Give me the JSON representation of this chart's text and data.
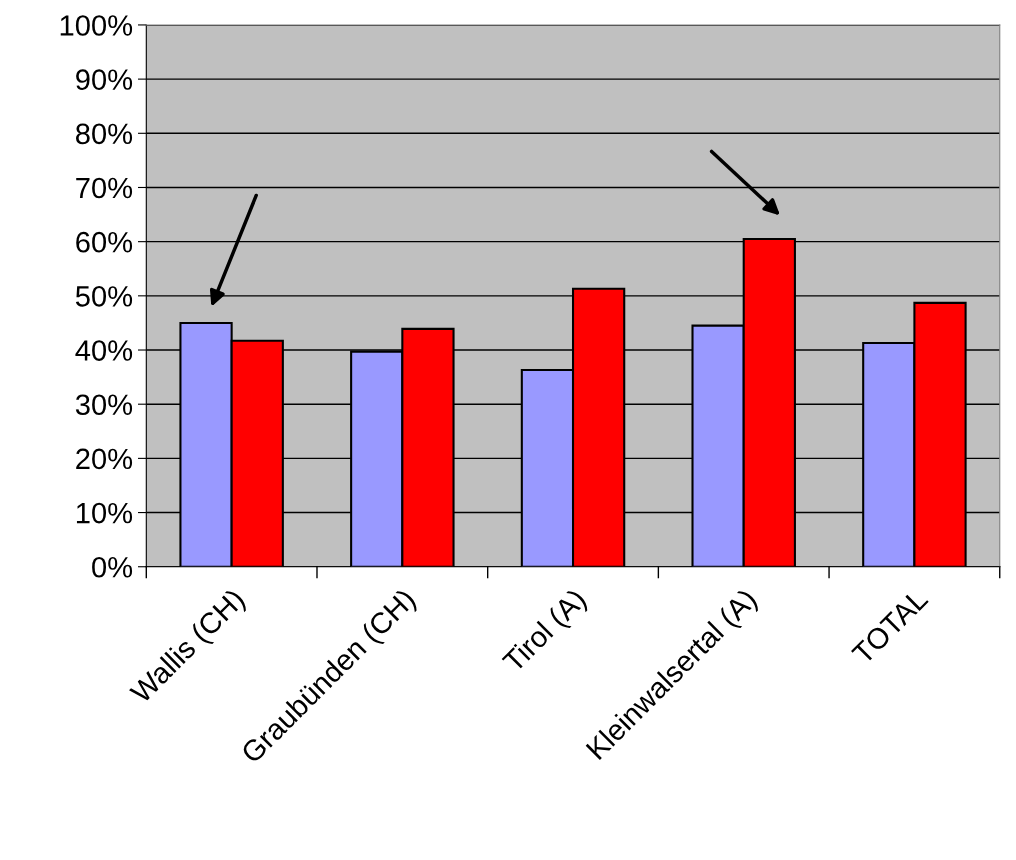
{
  "chart_data": {
    "type": "bar",
    "categories": [
      "Wallis (CH)",
      "Graubünden (CH)",
      "Tirol (A)",
      "Kleinwalsertal (A)",
      "TOTAL"
    ],
    "series": [
      {
        "color": "#9999ff",
        "values": [
          45,
          39.7,
          36.3,
          44.5,
          41.3
        ]
      },
      {
        "color": "#ff0000",
        "values": [
          41.7,
          43.9,
          51.3,
          60.5,
          48.7
        ]
      }
    ],
    "ylim": [
      0,
      100
    ],
    "yticks": [
      {
        "value": 0,
        "label": "0%"
      },
      {
        "value": 10,
        "label": "10%"
      },
      {
        "value": 20,
        "label": "20%"
      },
      {
        "value": 30,
        "label": "30%"
      },
      {
        "value": 40,
        "label": "40%"
      },
      {
        "value": 50,
        "label": "50%"
      },
      {
        "value": 60,
        "label": "60%"
      },
      {
        "value": 70,
        "label": "70%"
      },
      {
        "value": 80,
        "label": "80%"
      },
      {
        "value": 90,
        "label": "90%"
      },
      {
        "value": 100,
        "label": "100%"
      }
    ],
    "grid": "y",
    "legend": false
  }
}
